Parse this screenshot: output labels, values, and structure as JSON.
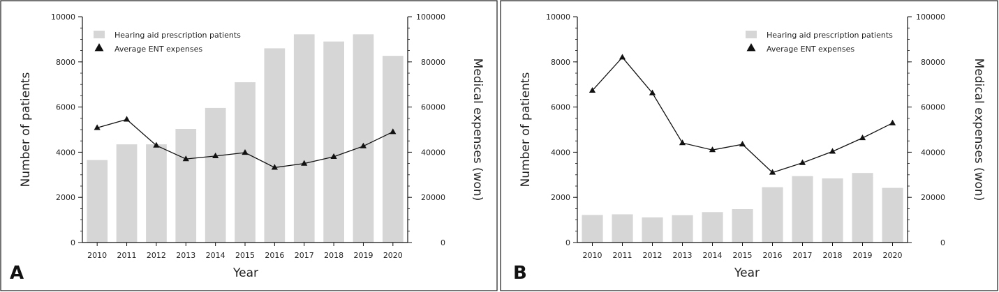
{
  "colors": {
    "bar": "#d6d6d6",
    "line": "#111111",
    "frame": "#1a1a1a"
  },
  "chart_data": [
    {
      "panel_label": "A",
      "type": "bar",
      "categories": [
        "2010",
        "2011",
        "2012",
        "2013",
        "2014",
        "2015",
        "2016",
        "2017",
        "2018",
        "2019",
        "2020"
      ],
      "series": [
        {
          "name": "Hearing aid prescription patients",
          "type": "bar",
          "axis": "left",
          "values": [
            3650,
            4350,
            4350,
            5030,
            5960,
            7100,
            8600,
            9220,
            8900,
            9220,
            8270
          ]
        },
        {
          "name": "Average ENT expenses",
          "type": "line",
          "axis": "right",
          "marker": "triangle",
          "values": [
            50800,
            54500,
            43000,
            37000,
            38300,
            39800,
            33200,
            35000,
            38000,
            42700,
            49000
          ]
        }
      ],
      "xlabel": "Year",
      "ylabel": "Number of patients",
      "y2label": "Medical expenses (won)",
      "ylim": [
        0,
        10000
      ],
      "y2lim": [
        0,
        100000
      ],
      "yticks": [
        "0",
        "2000",
        "4000",
        "6000",
        "8000",
        "10000"
      ],
      "y2ticks": [
        "0",
        "20000",
        "40000",
        "60000",
        "80000",
        "100000"
      ],
      "legend": [
        "Hearing aid prescription patients",
        "Average ENT expenses"
      ],
      "legend_position": "top-left"
    },
    {
      "panel_label": "B",
      "type": "bar",
      "categories": [
        "2010",
        "2011",
        "2012",
        "2013",
        "2014",
        "2015",
        "2016",
        "2017",
        "2018",
        "2019",
        "2020"
      ],
      "series": [
        {
          "name": "Hearing aid prescription patients",
          "type": "bar",
          "axis": "left",
          "values": [
            1220,
            1250,
            1110,
            1210,
            1350,
            1480,
            2450,
            2940,
            2840,
            3080,
            2420
          ]
        },
        {
          "name": "Average ENT expenses",
          "type": "line",
          "axis": "right",
          "marker": "triangle",
          "values": [
            67300,
            82000,
            66200,
            44100,
            41000,
            43500,
            31000,
            35300,
            40300,
            46300,
            52900
          ]
        }
      ],
      "xlabel": "Year",
      "ylabel": "Number of patients",
      "y2label": "Medical expenses (won)",
      "ylim": [
        0,
        10000
      ],
      "y2lim": [
        0,
        100000
      ],
      "yticks": [
        "0",
        "2000",
        "4000",
        "6000",
        "8000",
        "10000"
      ],
      "y2ticks": [
        "0",
        "20000",
        "40000",
        "60000",
        "80000",
        "100000"
      ],
      "legend": [
        "Hearing aid prescription patients",
        "Average ENT expenses"
      ],
      "legend_position": "top-right"
    }
  ]
}
